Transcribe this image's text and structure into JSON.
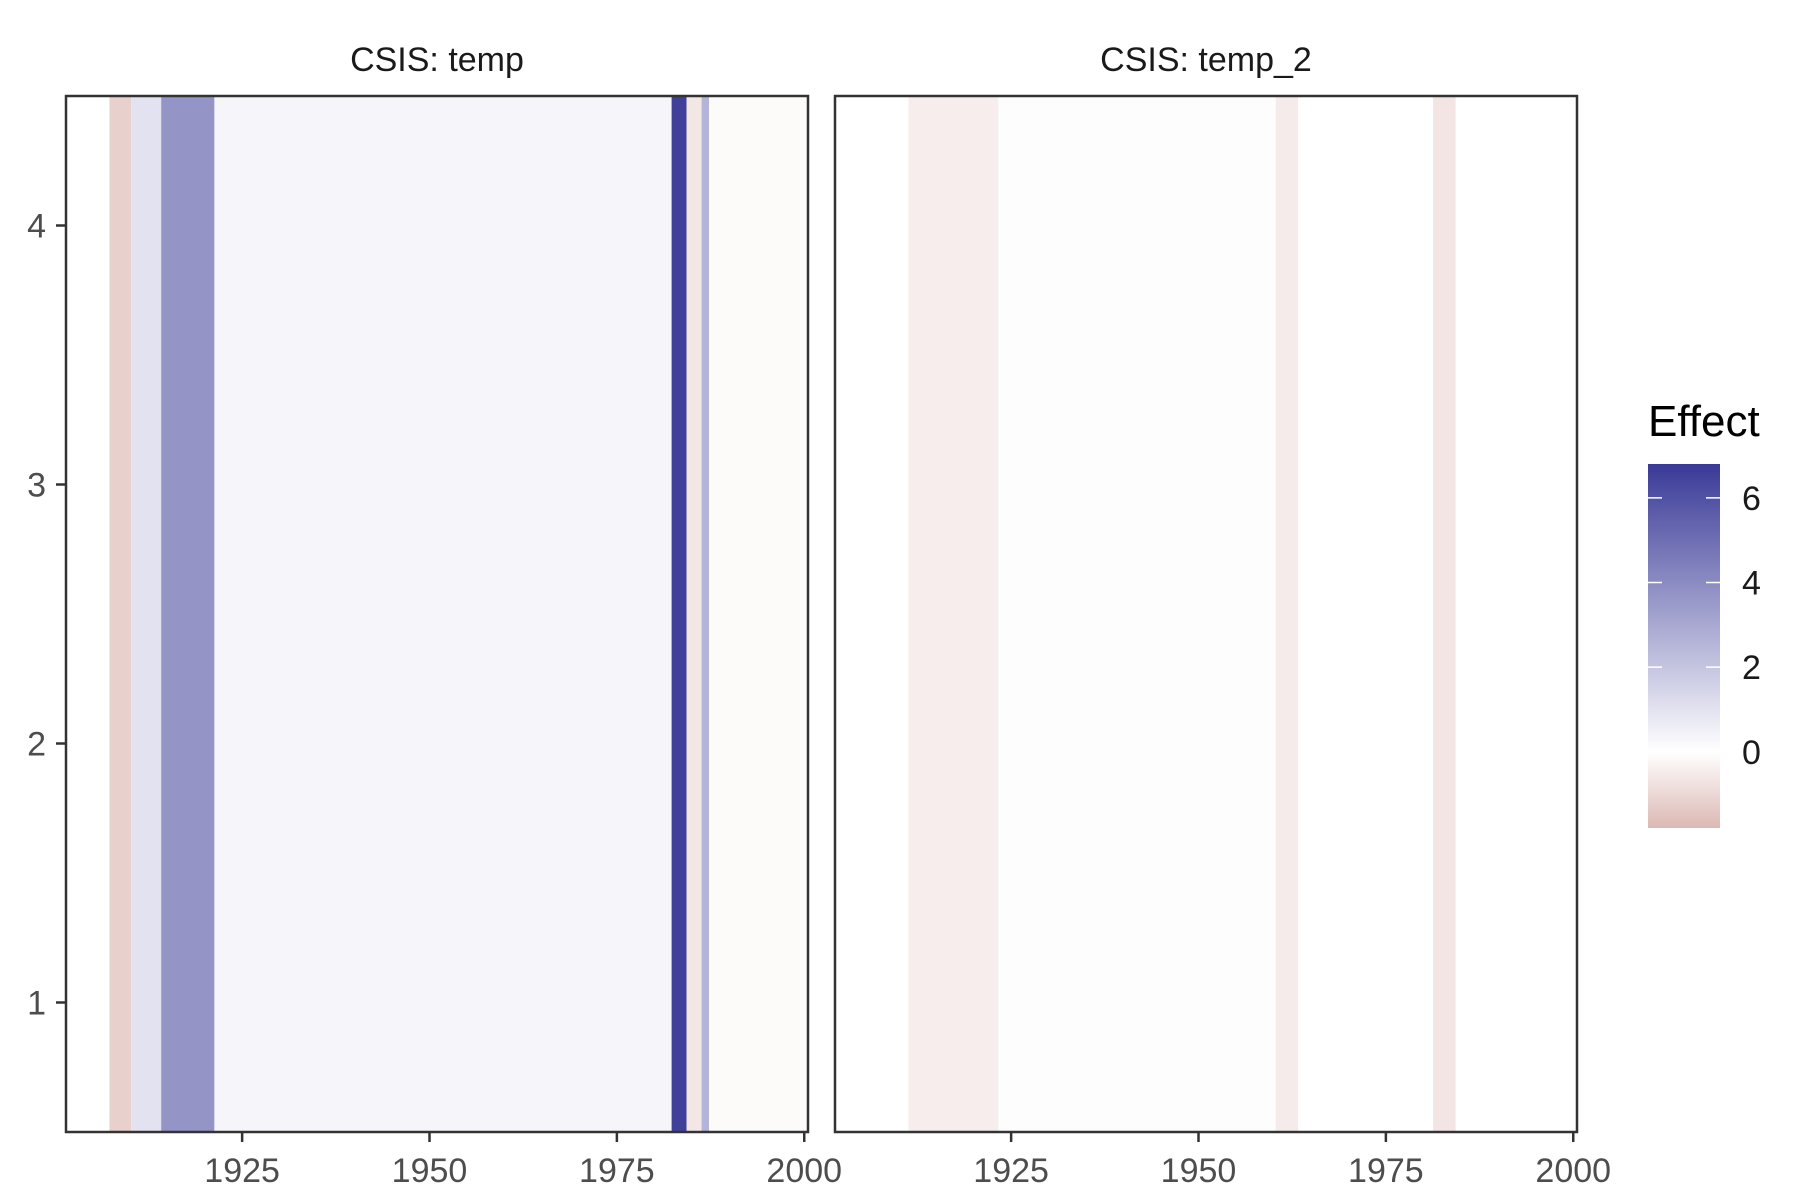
{
  "chart_data": {
    "type": "heatmap",
    "y_ticks": [
      1,
      2,
      3,
      4
    ],
    "y_range": [
      0.5,
      4.5
    ],
    "x_ticks": [
      1925,
      1950,
      1975,
      2000
    ],
    "x_range": [
      1901.5,
      2000.5
    ],
    "color_scale": {
      "title": "Effect",
      "ticks": [
        0,
        2,
        4,
        6
      ],
      "range": [
        -1.8,
        6.8
      ],
      "low_color": "#dcb8b4",
      "mid_color": "#ffffff",
      "high_color": "#3a3a98"
    },
    "panels": [
      {
        "title": "CSIS: temp",
        "bands": [
          {
            "x0": 1907.3,
            "x1": 1910.2,
            "effect": -1.2
          },
          {
            "x0": 1910.2,
            "x1": 1914.2,
            "effect": 1.0
          },
          {
            "x0": 1914.2,
            "x1": 1921.3,
            "effect": 3.7
          },
          {
            "x0": 1921.3,
            "x1": 1982.3,
            "effect": 0.35
          },
          {
            "x0": 1982.3,
            "x1": 1984.3,
            "effect": 6.6
          },
          {
            "x0": 1984.3,
            "x1": 1986.3,
            "effect": -0.6
          },
          {
            "x0": 1986.3,
            "x1": 1987.3,
            "effect": 2.6
          },
          {
            "x0": 1987.3,
            "x1": 2000.5,
            "effect": -0.12
          }
        ]
      },
      {
        "title": "CSIS: temp_2",
        "bands": [
          {
            "x0": 1911.3,
            "x1": 1923.3,
            "effect": -0.45
          },
          {
            "x0": 1923.3,
            "x1": 1926.2,
            "effect": 0.06
          },
          {
            "x0": 1926.2,
            "x1": 1960.3,
            "effect": -0.06
          },
          {
            "x0": 1960.3,
            "x1": 1963.3,
            "effect": -0.5
          },
          {
            "x0": 1981.3,
            "x1": 1984.3,
            "effect": -0.65
          }
        ]
      }
    ]
  }
}
